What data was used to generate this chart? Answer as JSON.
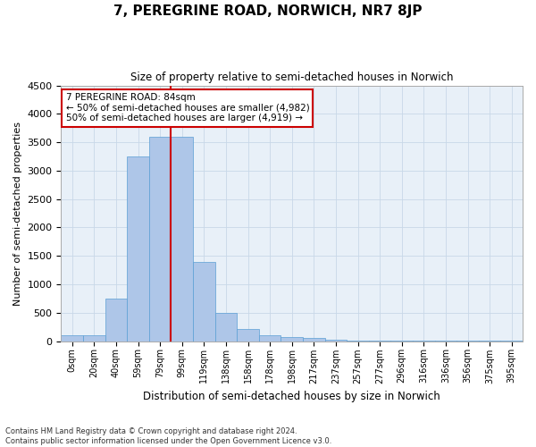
{
  "title": "7, PEREGRINE ROAD, NORWICH, NR7 8JP",
  "subtitle": "Size of property relative to semi-detached houses in Norwich",
  "xlabel": "Distribution of semi-detached houses by size in Norwich",
  "ylabel": "Number of semi-detached properties",
  "bin_labels": [
    "0sqm",
    "20sqm",
    "40sqm",
    "59sqm",
    "79sqm",
    "99sqm",
    "119sqm",
    "138sqm",
    "158sqm",
    "178sqm",
    "198sqm",
    "217sqm",
    "237sqm",
    "257sqm",
    "277sqm",
    "296sqm",
    "316sqm",
    "336sqm",
    "356sqm",
    "375sqm",
    "395sqm"
  ],
  "bin_values": [
    100,
    100,
    750,
    3250,
    3600,
    3600,
    1400,
    500,
    220,
    110,
    70,
    50,
    20,
    10,
    5,
    5,
    3,
    3,
    3,
    3,
    2
  ],
  "bar_color": "#aec6e8",
  "bar_edge_color": "#5a9fd4",
  "vline_color": "#cc0000",
  "vline_x_index": 5,
  "annotation_title": "7 PEREGRINE ROAD: 84sqm",
  "annotation_line1": "← 50% of semi-detached houses are smaller (4,982)",
  "annotation_line2": "50% of semi-detached houses are larger (4,919) →",
  "annotation_box_color": "#ffffff",
  "annotation_box_edge": "#cc0000",
  "ylim": [
    0,
    4500
  ],
  "yticks": [
    0,
    500,
    1000,
    1500,
    2000,
    2500,
    3000,
    3500,
    4000,
    4500
  ],
  "grid_color": "#c8d8e8",
  "background_color": "#e8f0f8",
  "footer_line1": "Contains HM Land Registry data © Crown copyright and database right 2024.",
  "footer_line2": "Contains public sector information licensed under the Open Government Licence v3.0."
}
